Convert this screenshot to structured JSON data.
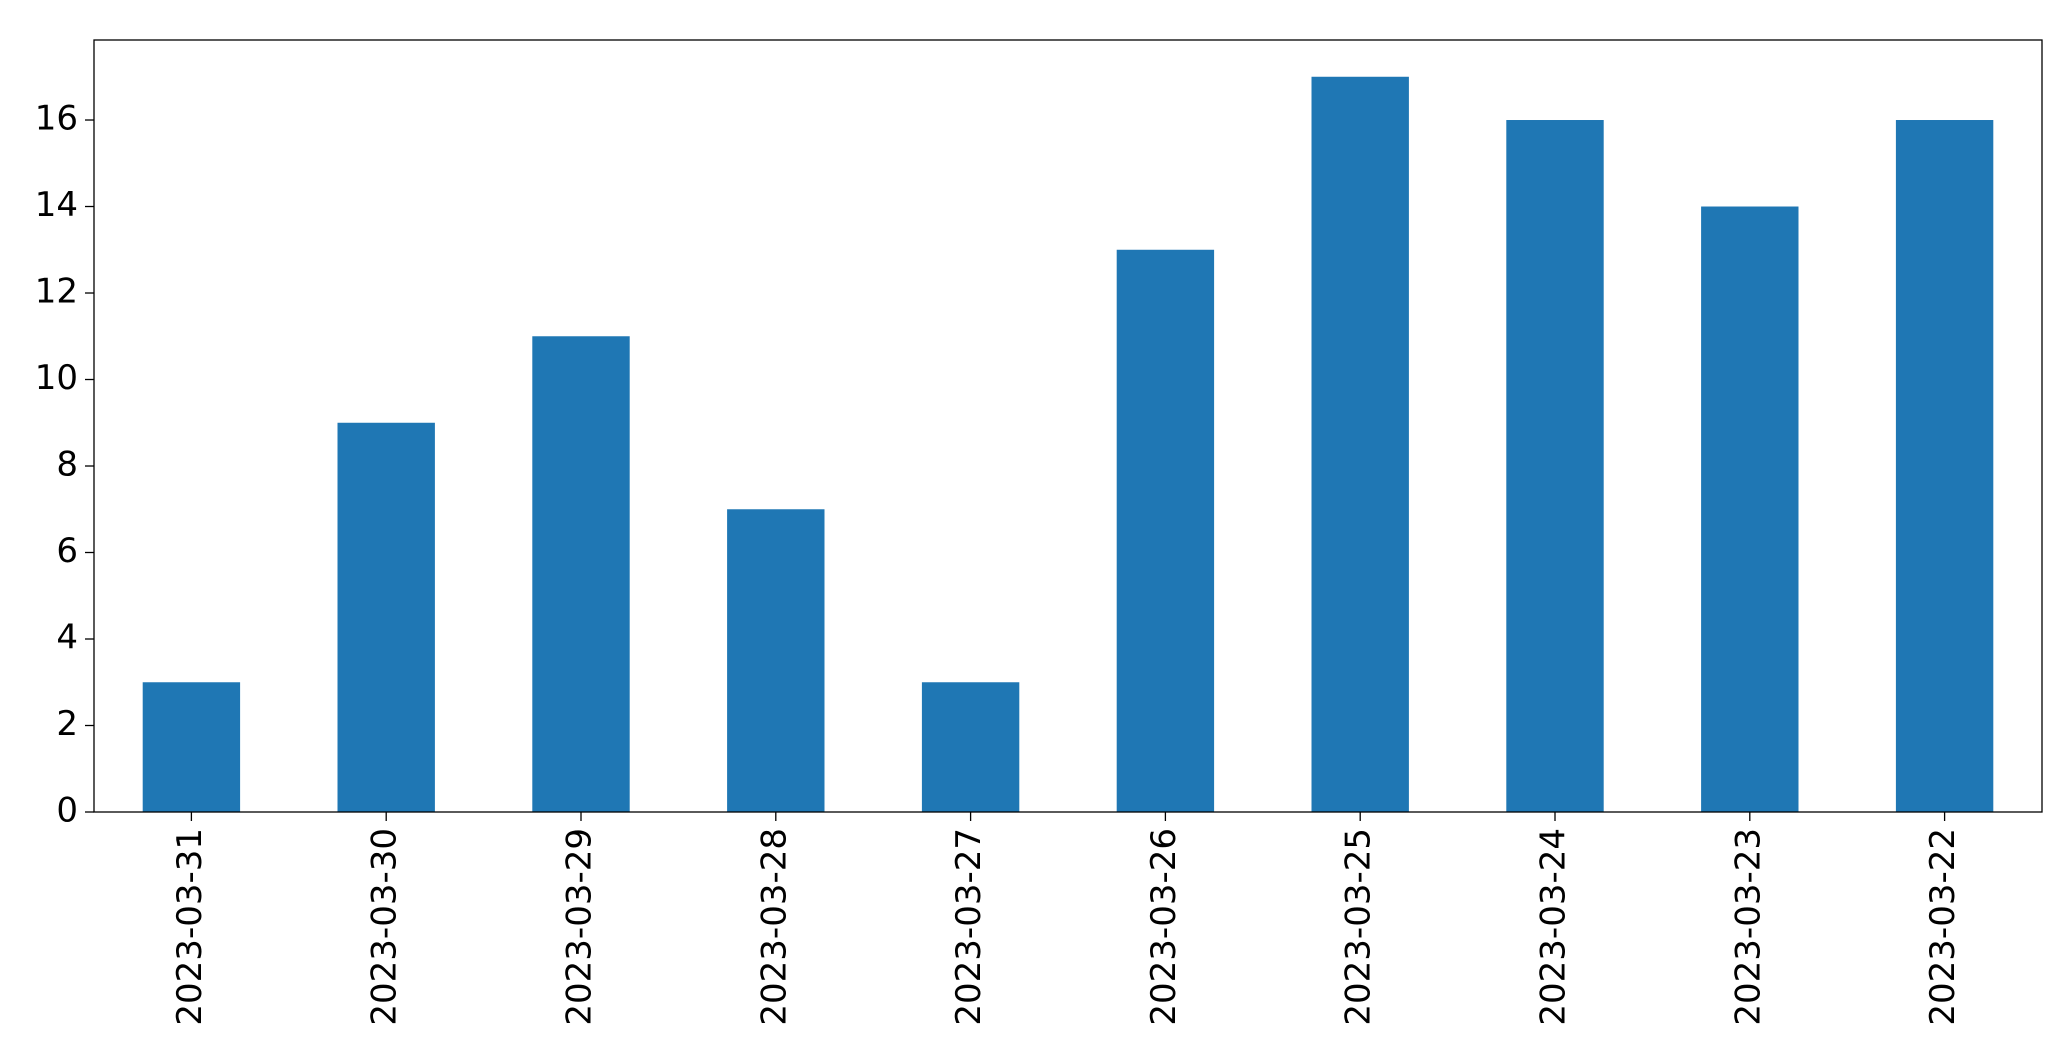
{
  "chart_data": {
    "type": "bar",
    "categories": [
      "2023-03-31",
      "2023-03-30",
      "2023-03-29",
      "2023-03-28",
      "2023-03-27",
      "2023-03-26",
      "2023-03-25",
      "2023-03-24",
      "2023-03-23",
      "2023-03-22"
    ],
    "values": [
      3,
      9,
      11,
      7,
      3,
      13,
      17,
      16,
      14,
      16
    ],
    "color": "#1f77b4",
    "ylim": [
      0,
      17.85
    ],
    "yticks": [
      0,
      2,
      4,
      6,
      8,
      10,
      12,
      14,
      16
    ],
    "grid": false
  }
}
